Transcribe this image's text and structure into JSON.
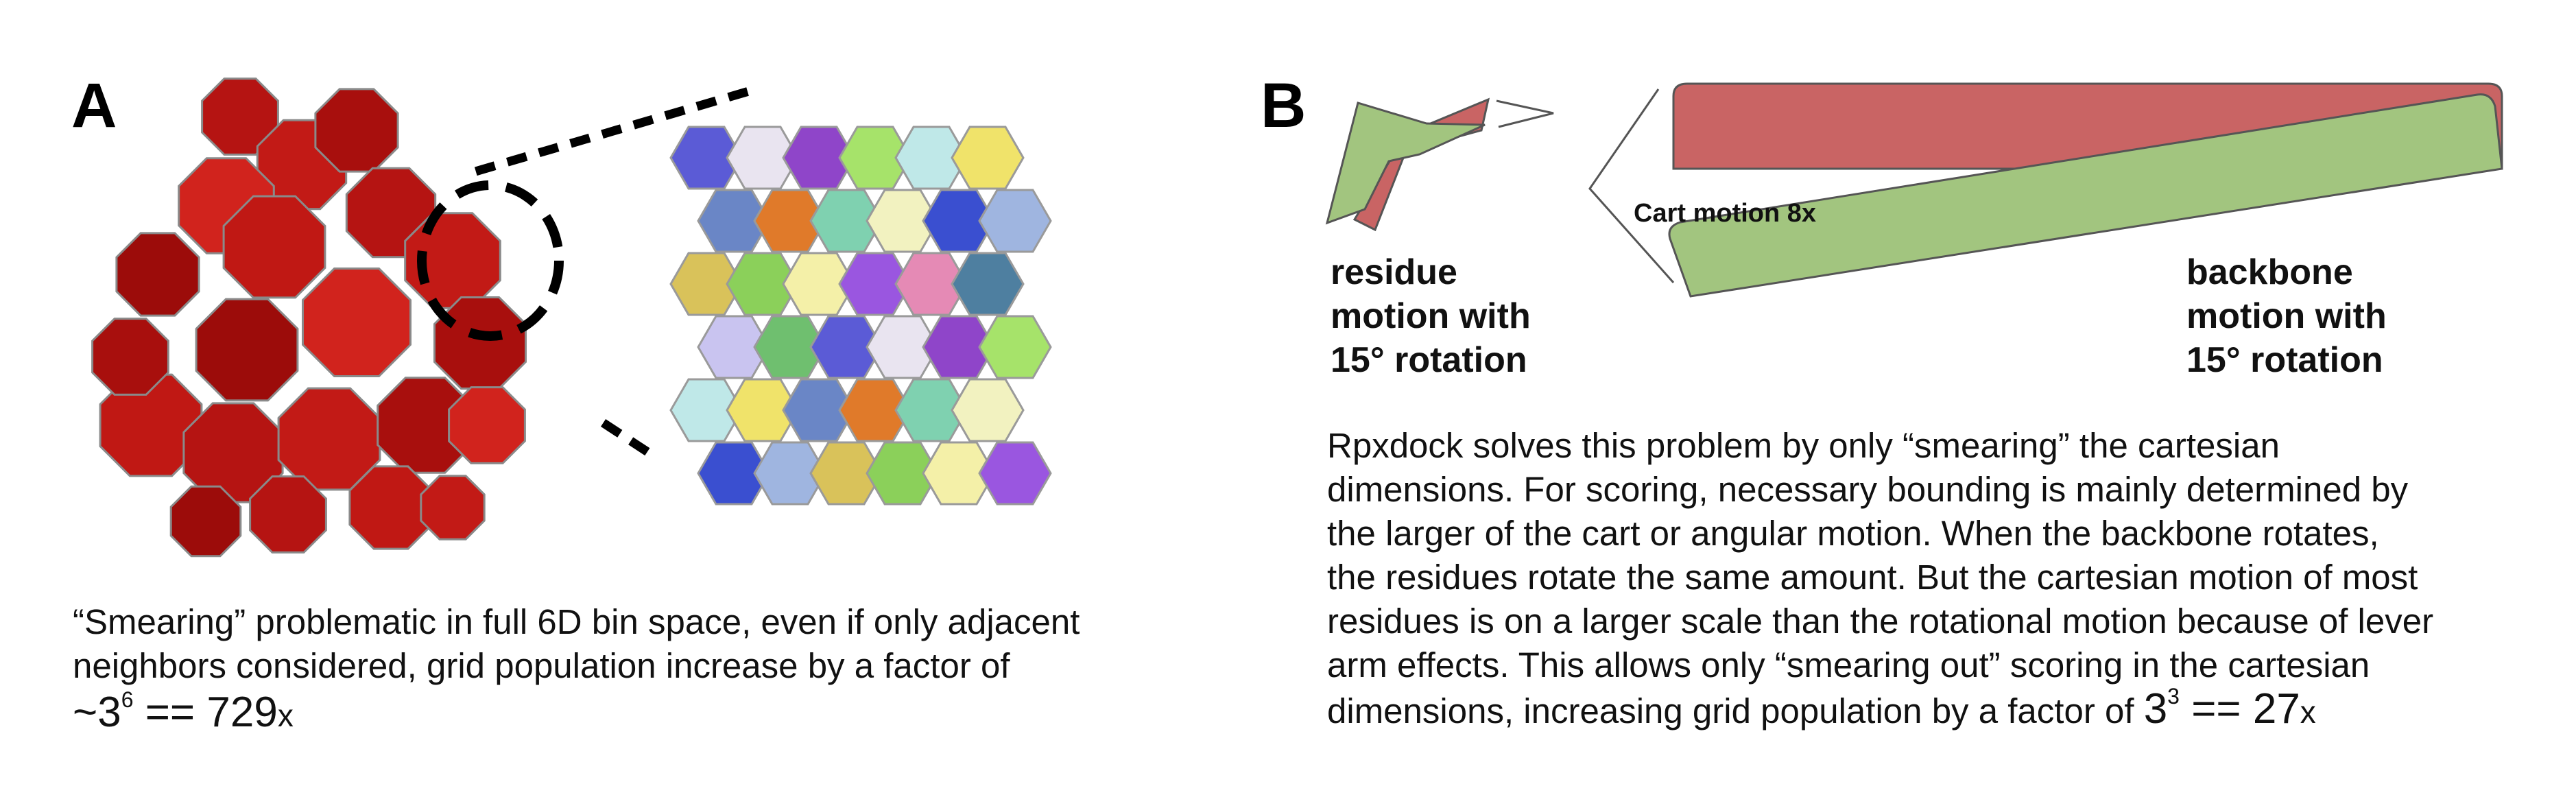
{
  "panel_a": {
    "label": "A",
    "caption_lines": [
      "“Smearing” problematic in full 6D bin space, even if only adjacent",
      "neighbors considered, grid population increase by a factor of"
    ],
    "formula_prefix": "~3",
    "formula_exp": "6",
    "formula_rest": " == 729",
    "formula_suffix": "x"
  },
  "panel_b": {
    "label": "B",
    "residue_label_lines": [
      "residue",
      "motion with",
      "15° rotation"
    ],
    "backbone_label_lines": [
      "backbone",
      "motion with",
      "15° rotation"
    ],
    "cart_motion_label": "Cart motion 8x",
    "body_lines": [
      "Rpxdock solves this problem by only “smearing” the cartesian",
      "dimensions. For scoring, necessary bounding is mainly determined by",
      "the larger of the cart or angular motion. When the backbone rotates,",
      "the residues rotate the same amount. But the cartesian motion of most",
      "residues is on a larger scale than the rotational motion because of lever",
      "arm effects. This allows only “smearing out” scoring in the cartesian"
    ],
    "last_line_prefix": "dimensions, increasing grid population by a factor of ",
    "last_formula_base": "3",
    "last_formula_exp": "3",
    "last_formula_rest": " == 27",
    "last_formula_suffix": "x",
    "colors": {
      "red": "#c96464",
      "green": "#a2c57f",
      "outline": "#555555"
    }
  }
}
